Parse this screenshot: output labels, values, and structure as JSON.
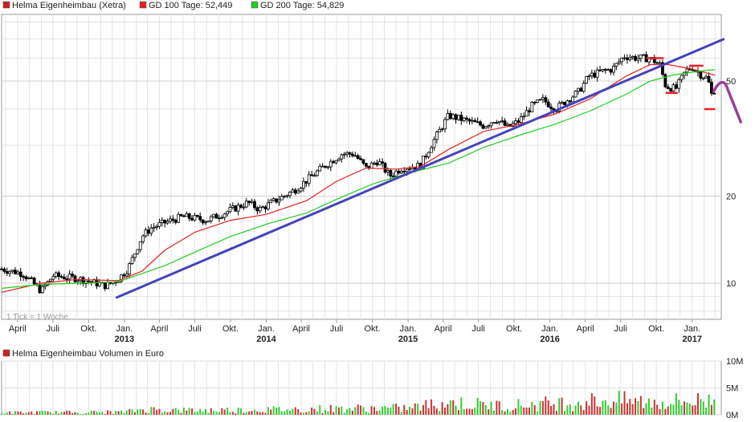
{
  "chart_data": [
    {
      "type": "candlestick",
      "legend": [
        {
          "label": "Helma Eigenheimbau (Xetra)",
          "color": "#cc2222"
        },
        {
          "label": "GD 100 Tage: 52,449",
          "color": "#e02020"
        },
        {
          "label": "GD 200 Tage: 54,829",
          "color": "#22cc22"
        }
      ],
      "yscale": "log",
      "ylim": [
        7.5,
        85
      ],
      "y_ticks": [
        {
          "value": 10,
          "label": "10"
        },
        {
          "value": 20,
          "label": "20"
        },
        {
          "value": 50,
          "label": "50"
        }
      ],
      "xlim": [
        "2012-02-20",
        "2017-03-17"
      ],
      "x_ticks": [
        {
          "date": "2012-04-01",
          "label": "April"
        },
        {
          "date": "2012-07-01",
          "label": "Juli"
        },
        {
          "date": "2012-10-01",
          "label": "Okt."
        },
        {
          "date": "2013-01-01",
          "label": "Jan."
        },
        {
          "date": "2013-04-01",
          "label": "April"
        },
        {
          "date": "2013-07-01",
          "label": "Juli"
        },
        {
          "date": "2013-10-01",
          "label": "Okt."
        },
        {
          "date": "2014-01-01",
          "label": "Jan."
        },
        {
          "date": "2014-04-01",
          "label": "April"
        },
        {
          "date": "2014-07-01",
          "label": "Juli"
        },
        {
          "date": "2014-10-01",
          "label": "Okt."
        },
        {
          "date": "2015-01-01",
          "label": "Jan."
        },
        {
          "date": "2015-04-01",
          "label": "April"
        },
        {
          "date": "2015-07-01",
          "label": "Juli"
        },
        {
          "date": "2015-10-01",
          "label": "Okt."
        },
        {
          "date": "2016-01-01",
          "label": "Jan."
        },
        {
          "date": "2016-04-01",
          "label": "April"
        },
        {
          "date": "2016-07-01",
          "label": "Juli"
        },
        {
          "date": "2016-10-01",
          "label": "Okt."
        },
        {
          "date": "2017-01-01",
          "label": "Jan."
        }
      ],
      "year_labels": [
        {
          "date": "2013-01-01",
          "label": "2013"
        },
        {
          "date": "2014-01-01",
          "label": "2014"
        },
        {
          "date": "2015-01-01",
          "label": "2015"
        },
        {
          "date": "2016-01-01",
          "label": "2016"
        },
        {
          "date": "2017-01-01",
          "label": "2017"
        }
      ],
      "annotation": "1 Tick = 1 Woche",
      "price_anchors": [
        [
          "2012-02-20",
          11.2
        ],
        [
          "2012-04-15",
          10.8
        ],
        [
          "2012-06-01",
          9.4
        ],
        [
          "2012-07-01",
          10.6
        ],
        [
          "2012-09-01",
          10.4
        ],
        [
          "2012-11-15",
          9.8
        ],
        [
          "2012-12-15",
          10.3
        ],
        [
          "2013-01-10",
          11.2
        ],
        [
          "2013-02-15",
          14.5
        ],
        [
          "2013-03-10",
          15.5
        ],
        [
          "2013-04-15",
          16.2
        ],
        [
          "2013-06-01",
          17.0
        ],
        [
          "2013-08-01",
          16.5
        ],
        [
          "2013-09-15",
          17.5
        ],
        [
          "2013-11-15",
          19.0
        ],
        [
          "2013-12-15",
          18.0
        ],
        [
          "2014-02-15",
          20.0
        ],
        [
          "2014-03-15",
          21.0
        ],
        [
          "2014-06-01",
          25.5
        ],
        [
          "2014-07-15",
          28.0
        ],
        [
          "2014-08-15",
          28.0
        ],
        [
          "2014-09-15",
          25.0
        ],
        [
          "2014-10-15",
          26.5
        ],
        [
          "2014-11-15",
          23.5
        ],
        [
          "2014-12-15",
          25.0
        ],
        [
          "2015-02-01",
          25.5
        ],
        [
          "2015-03-01",
          30.0
        ],
        [
          "2015-04-15",
          38.0
        ],
        [
          "2015-05-15",
          37.0
        ],
        [
          "2015-06-15",
          36.0
        ],
        [
          "2015-07-15",
          35.0
        ],
        [
          "2015-08-15",
          37.0
        ],
        [
          "2015-09-15",
          34.5
        ],
        [
          "2015-10-15",
          36.5
        ],
        [
          "2015-11-15",
          41.0
        ],
        [
          "2015-12-15",
          43.0
        ],
        [
          "2016-01-15",
          40.0
        ],
        [
          "2016-02-15",
          43.0
        ],
        [
          "2016-03-15",
          46.0
        ],
        [
          "2016-04-10",
          52.0
        ],
        [
          "2016-05-15",
          54.0
        ],
        [
          "2016-06-10",
          55.0
        ],
        [
          "2016-07-10",
          61.0
        ],
        [
          "2016-08-15",
          60.0
        ],
        [
          "2016-09-15",
          60.0
        ],
        [
          "2016-10-10",
          57.0
        ],
        [
          "2016-10-25",
          48.0
        ],
        [
          "2016-11-20",
          47.0
        ],
        [
          "2016-12-15",
          54.0
        ],
        [
          "2017-01-01",
          56.0
        ],
        [
          "2017-01-20",
          53.0
        ],
        [
          "2017-02-10",
          51.0
        ],
        [
          "2017-02-20",
          45.0
        ],
        [
          "2017-03-01",
          47.0
        ]
      ],
      "series": [
        {
          "name": "GD 100 Tage",
          "color": "#e02020",
          "points": [
            [
              "2012-02-20",
              9.3
            ],
            [
              "2012-06-01",
              10.0
            ],
            [
              "2012-09-01",
              10.3
            ],
            [
              "2012-12-15",
              10.2
            ],
            [
              "2013-02-15",
              11.0
            ],
            [
              "2013-04-15",
              13.0
            ],
            [
              "2013-07-01",
              15.0
            ],
            [
              "2013-10-01",
              16.5
            ],
            [
              "2014-01-01",
              17.3
            ],
            [
              "2014-04-15",
              19.3
            ],
            [
              "2014-07-01",
              22.5
            ],
            [
              "2014-09-15",
              25.0
            ],
            [
              "2014-12-01",
              24.8
            ],
            [
              "2015-02-01",
              25.3
            ],
            [
              "2015-04-15",
              29.0
            ],
            [
              "2015-07-15",
              33.5
            ],
            [
              "2015-10-15",
              35.5
            ],
            [
              "2016-01-15",
              38.5
            ],
            [
              "2016-04-15",
              43.5
            ],
            [
              "2016-07-15",
              52.0
            ],
            [
              "2016-09-15",
              57.0
            ],
            [
              "2016-11-01",
              57.0
            ],
            [
              "2017-01-01",
              55.0
            ],
            [
              "2017-03-01",
              52.4
            ]
          ]
        },
        {
          "name": "GD 200 Tage",
          "color": "#22cc22",
          "points": [
            [
              "2012-02-20",
              9.6
            ],
            [
              "2012-06-01",
              9.9
            ],
            [
              "2012-12-15",
              10.1
            ],
            [
              "2013-04-15",
              11.5
            ],
            [
              "2013-07-01",
              12.8
            ],
            [
              "2013-10-01",
              14.5
            ],
            [
              "2014-01-01",
              16.0
            ],
            [
              "2014-04-15",
              17.5
            ],
            [
              "2014-07-01",
              19.5
            ],
            [
              "2014-10-01",
              22.0
            ],
            [
              "2015-01-01",
              24.0
            ],
            [
              "2015-04-15",
              26.0
            ],
            [
              "2015-07-15",
              29.5
            ],
            [
              "2015-10-15",
              32.5
            ],
            [
              "2016-01-15",
              35.5
            ],
            [
              "2016-04-15",
              39.5
            ],
            [
              "2016-07-15",
              45.0
            ],
            [
              "2016-09-15",
              50.0
            ],
            [
              "2016-11-15",
              52.5
            ],
            [
              "2017-01-15",
              54.0
            ],
            [
              "2017-03-01",
              54.8
            ]
          ]
        }
      ],
      "trendline": {
        "color": "#4444bb",
        "from": [
          "2012-12-10",
          8.9
        ],
        "to": [
          "2017-03-25",
          70.0
        ]
      },
      "resistance_marks": [
        {
          "from": [
            "2016-09-05",
            60.0
          ],
          "to": [
            "2016-10-20",
            60.0
          ]
        },
        {
          "from": [
            "2016-10-25",
            45.5
          ],
          "to": [
            "2016-11-25",
            45.5
          ]
        },
        {
          "from": [
            "2016-12-25",
            56.5
          ],
          "to": [
            "2017-01-30",
            56.5
          ]
        },
        {
          "from": [
            "2017-02-01",
            40.0
          ],
          "to": [
            "2017-03-01",
            40.0
          ]
        }
      ]
    },
    {
      "type": "bar",
      "legend": [
        {
          "label": "Helma Eigenheimbau Volumen in Euro",
          "color": "#cc2222"
        }
      ],
      "ylim": [
        0,
        10
      ],
      "y_ticks": [
        {
          "value": 0,
          "label": "0M"
        },
        {
          "value": 5,
          "label": "5M"
        },
        {
          "value": 10,
          "label": "10M"
        }
      ],
      "xlim": [
        "2012-02-20",
        "2017-03-17"
      ],
      "volume_levels_M": [
        [
          "2012-02-20",
          0.4
        ],
        [
          "2012-12-31",
          0.5
        ],
        [
          "2013-02-15",
          1.0
        ],
        [
          "2013-06-01",
          0.8
        ],
        [
          "2014-01-01",
          0.9
        ],
        [
          "2014-07-01",
          1.1
        ],
        [
          "2015-01-01",
          1.2
        ],
        [
          "2015-04-01",
          2.2
        ],
        [
          "2015-09-01",
          1.6
        ],
        [
          "2016-01-01",
          2.0
        ],
        [
          "2016-06-01",
          2.6
        ],
        [
          "2016-10-01",
          2.2
        ],
        [
          "2017-03-01",
          2.6
        ]
      ]
    }
  ]
}
